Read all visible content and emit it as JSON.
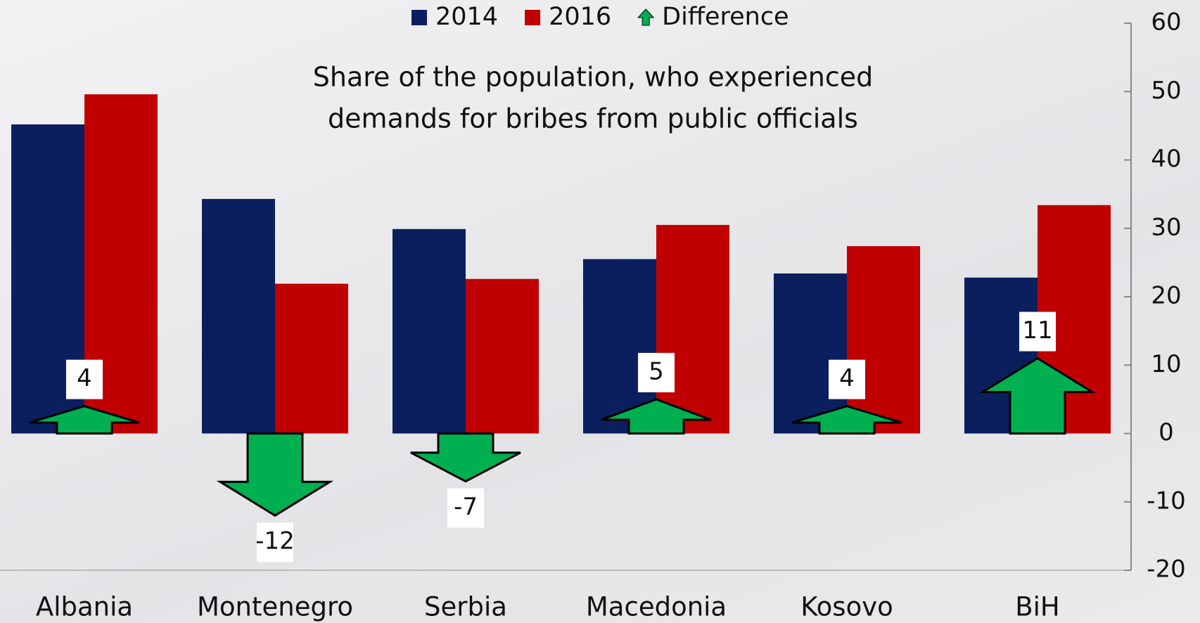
{
  "chart_data": {
    "type": "bar",
    "title": [
      "Share of the population, who experienced",
      "demands for bribes from public officials"
    ],
    "categories": [
      "Albania",
      "Montenegro",
      "Serbia",
      "Macedonia",
      "Kosovo",
      "BiH"
    ],
    "series": [
      {
        "name": "2014",
        "color": "#0b1f5e",
        "values": [
          45.2,
          34.3,
          29.9,
          25.5,
          23.4,
          22.8
        ]
      },
      {
        "name": "2016",
        "color": "#c00000",
        "values": [
          49.6,
          21.9,
          22.6,
          30.5,
          27.4,
          33.4
        ]
      },
      {
        "name": "Difference",
        "color": "#00b050",
        "values": [
          4,
          -12,
          -7,
          5,
          4,
          11
        ]
      }
    ],
    "ylim": [
      -20,
      60
    ],
    "yticks": [
      -20,
      -10,
      0,
      10,
      20,
      30,
      40,
      50,
      60
    ],
    "axis_side": "right",
    "grid": false
  }
}
